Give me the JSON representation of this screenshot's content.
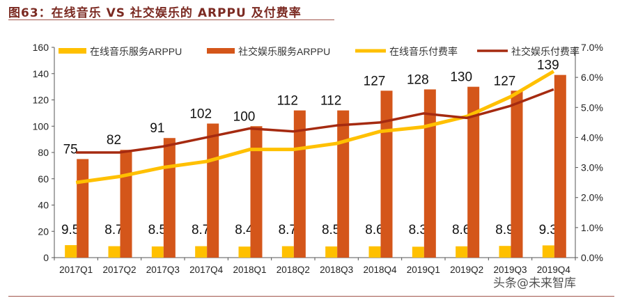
{
  "title": "图63：在线音乐 VS 社交娱乐的 ARPPU 及付费率",
  "watermark": "头条@未来智库",
  "chart_data": {
    "type": "bar+line",
    "categories": [
      "2017Q1",
      "2017Q2",
      "2017Q3",
      "2017Q4",
      "2018Q1",
      "2018Q2",
      "2018Q3",
      "2018Q4",
      "2019Q1",
      "2019Q2",
      "2019Q3",
      "2019Q4"
    ],
    "left_axis": {
      "range": [
        0,
        160
      ],
      "ticks": [
        "0",
        "20",
        "40",
        "60",
        "80",
        "100",
        "120",
        "140",
        "160"
      ]
    },
    "right_axis": {
      "range": [
        0,
        7
      ],
      "ticks": [
        "0.0%",
        "1.0%",
        "2.0%",
        "3.0%",
        "4.0%",
        "5.0%",
        "6.0%",
        "7.0%"
      ]
    },
    "grid": false,
    "legend_position": "top",
    "series": [
      {
        "name": "在线音乐服务ARPPU",
        "kind": "bar",
        "axis": "left",
        "color": "#ffc000",
        "values": [
          9.5,
          8.7,
          8.5,
          8.7,
          8.4,
          8.7,
          8.5,
          8.6,
          8.3,
          8.6,
          8.9,
          9.3
        ],
        "labels": [
          "9.5",
          "8.7",
          "8.5",
          "8.7",
          "8.4",
          "8.7",
          "8.5",
          "8.6",
          "8.3",
          "8.6",
          "8.9",
          "9.3"
        ]
      },
      {
        "name": "社交娱乐服务ARPPU",
        "kind": "bar",
        "axis": "left",
        "color": "#d4561a",
        "values": [
          75,
          82,
          91,
          102,
          100,
          112,
          112,
          127,
          128,
          130,
          127,
          139
        ],
        "labels": [
          "75",
          "82",
          "91",
          "102",
          "100",
          "112",
          "112",
          "127",
          "128",
          "130",
          "127",
          "139"
        ]
      },
      {
        "name": "在线音乐付费率",
        "kind": "line",
        "axis": "right",
        "color": "#ffc000",
        "values": [
          2.5,
          2.7,
          3.0,
          3.2,
          3.6,
          3.6,
          3.8,
          4.2,
          4.35,
          4.7,
          5.35,
          6.2
        ]
      },
      {
        "name": "社交娱乐付费率",
        "kind": "line",
        "axis": "right",
        "color": "#a52a10",
        "values": [
          3.5,
          3.5,
          3.7,
          4.0,
          4.3,
          4.2,
          4.4,
          4.5,
          4.8,
          4.65,
          5.05,
          5.6
        ]
      }
    ]
  }
}
